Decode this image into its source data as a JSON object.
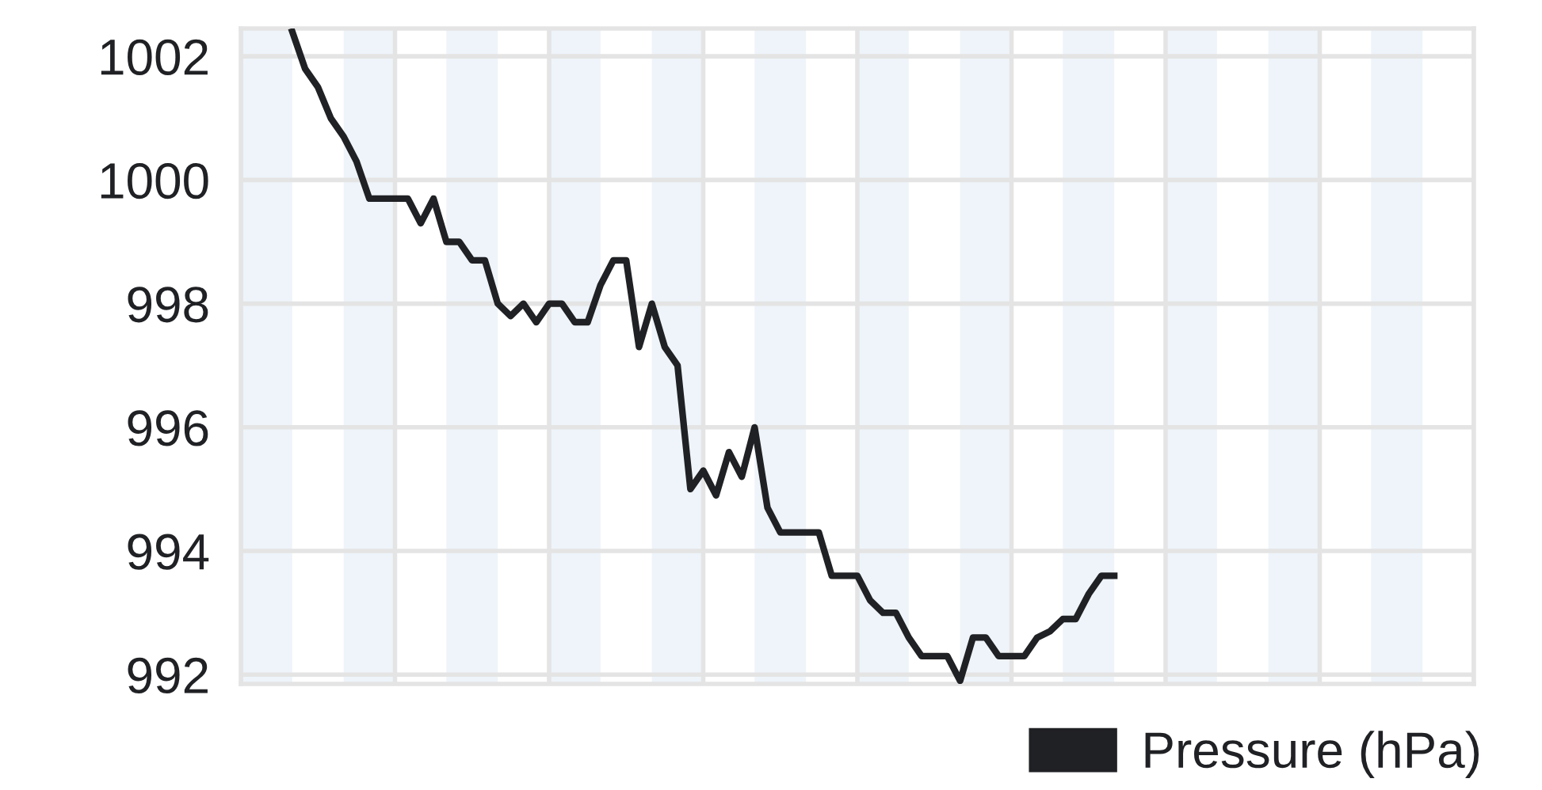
{
  "chart_data": {
    "type": "line",
    "categories": [
      null,
      null,
      null,
      null,
      null,
      null,
      null,
      null,
      null,
      null,
      null,
      null,
      null,
      null,
      null,
      null,
      null,
      null,
      null,
      null,
      null,
      null,
      null,
      null,
      null,
      null,
      null,
      null,
      null,
      null,
      null,
      null,
      null,
      null,
      null,
      null,
      null,
      null,
      null,
      null,
      null,
      null,
      null,
      null,
      null,
      null,
      null,
      null,
      null,
      null,
      null,
      null,
      null,
      null,
      null,
      null,
      null,
      null,
      null,
      null,
      null,
      null,
      null,
      null,
      null,
      null,
      null,
      null,
      null,
      null,
      null,
      null,
      null,
      null,
      null,
      null,
      null,
      null,
      null,
      null,
      null,
      null,
      null,
      null,
      null,
      null,
      null,
      null,
      null,
      null,
      null,
      null,
      null,
      null,
      null,
      null,
      null
    ],
    "series": [
      {
        "name": "Pressure (hPa)",
        "color": "#202124",
        "values": [
          null,
          null,
          null,
          null,
          1002.4,
          1001.8,
          1001.5,
          1001.0,
          1000.7,
          1000.3,
          999.7,
          999.7,
          999.7,
          999.7,
          999.3,
          999.7,
          999.0,
          999.0,
          998.7,
          998.7,
          998.0,
          997.8,
          998.0,
          997.7,
          998.0,
          998.0,
          997.7,
          997.7,
          998.3,
          998.7,
          998.7,
          997.3,
          998.0,
          997.3,
          997.0,
          995.0,
          995.3,
          994.9,
          995.6,
          995.2,
          996.0,
          994.7,
          994.3,
          994.3,
          994.3,
          994.3,
          993.6,
          993.6,
          993.6,
          993.2,
          993.0,
          993.0,
          992.6,
          992.3,
          992.3,
          992.3,
          991.9,
          992.6,
          992.6,
          992.3,
          992.3,
          992.3,
          992.6,
          992.7,
          992.9,
          992.9,
          993.3,
          993.6,
          993.6,
          null,
          null,
          null,
          null,
          null,
          null,
          null,
          null,
          null,
          null,
          null,
          null,
          null,
          null,
          null,
          null,
          null,
          null,
          null,
          null,
          null,
          null,
          null,
          null,
          null,
          null,
          null,
          null
        ]
      }
    ],
    "ylim": [
      991.85,
      1002.45
    ],
    "yticks": [
      992,
      994,
      996,
      998,
      1000,
      1002
    ],
    "grid": true,
    "legend": "bottom right",
    "tick_labels": "y",
    "marker": "none",
    "line_style": "solid"
  }
}
